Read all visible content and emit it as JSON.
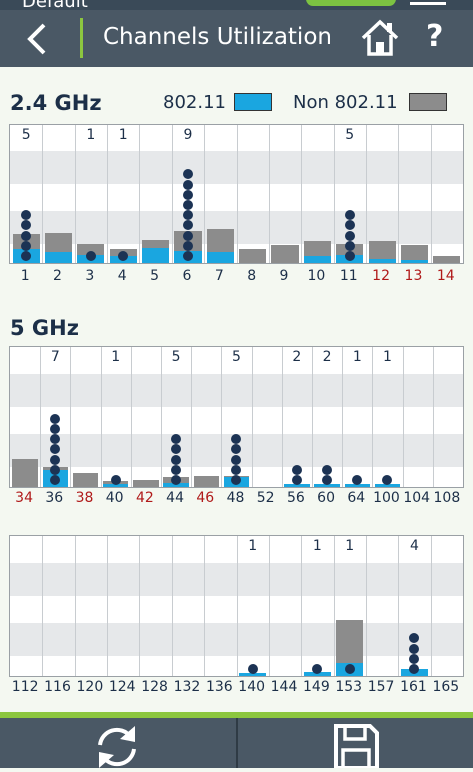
{
  "status": {
    "text": "Default"
  },
  "header": {
    "title": "Channels Utilization",
    "back_icon": "chevron-left-icon",
    "home_icon": "home-icon",
    "help_label": "?"
  },
  "legend": {
    "wifi_label": "802.11",
    "wifi_color": "#1aa6e0",
    "nonwifi_label": "Non 802.11",
    "nonwifi_color": "#8c8c8c"
  },
  "footer": {
    "refresh_icon": "refresh-icon",
    "save_icon": "save-icon"
  },
  "chart_data": [
    {
      "type": "bar",
      "title": "2.4 GHz",
      "x": [
        "1",
        "2",
        "3",
        "4",
        "5",
        "6",
        "7",
        "8",
        "9",
        "10",
        "11",
        "12",
        "13",
        "14"
      ],
      "red_channels": [
        "12",
        "13",
        "14"
      ],
      "series": [
        {
          "name": "802.11",
          "values": [
            0.1,
            0.08,
            0.06,
            0.05,
            0.11,
            0.09,
            0.08,
            0.0,
            0.0,
            0.05,
            0.06,
            0.03,
            0.02,
            0.0
          ]
        },
        {
          "name": "Non 802.11",
          "values": [
            0.21,
            0.22,
            0.14,
            0.1,
            0.17,
            0.23,
            0.25,
            0.1,
            0.13,
            0.16,
            0.14,
            0.16,
            0.13,
            0.05
          ]
        }
      ],
      "ap_counts": [
        5,
        0,
        1,
        1,
        0,
        9,
        0,
        0,
        0,
        0,
        5,
        0,
        0,
        0
      ]
    },
    {
      "type": "bar",
      "title": "5 GHz",
      "x": [
        "34",
        "36",
        "38",
        "40",
        "42",
        "44",
        "46",
        "48",
        "52",
        "56",
        "60",
        "64",
        "100",
        "104",
        "108"
      ],
      "red_channels": [
        "34",
        "38",
        "42",
        "46"
      ],
      "series": [
        {
          "name": "802.11",
          "values": [
            0.0,
            0.12,
            0.0,
            0.02,
            0.0,
            0.03,
            0.0,
            0.07,
            0.0,
            0.02,
            0.02,
            0.02,
            0.02,
            0.0,
            0.0
          ]
        },
        {
          "name": "Non 802.11",
          "values": [
            0.2,
            0.14,
            0.1,
            0.04,
            0.05,
            0.07,
            0.08,
            0.08,
            0.0,
            0.02,
            0.02,
            0.02,
            0.02,
            0.0,
            0.0
          ]
        }
      ],
      "ap_counts": [
        0,
        7,
        0,
        1,
        0,
        5,
        0,
        5,
        0,
        2,
        2,
        1,
        1,
        0,
        0
      ]
    },
    {
      "type": "bar",
      "title": "",
      "x": [
        "112",
        "116",
        "120",
        "124",
        "128",
        "132",
        "136",
        "140",
        "144",
        "149",
        "153",
        "157",
        "161",
        "165"
      ],
      "red_channels": [],
      "series": [
        {
          "name": "802.11",
          "values": [
            0.0,
            0.0,
            0.0,
            0.0,
            0.0,
            0.0,
            0.0,
            0.02,
            0.0,
            0.03,
            0.09,
            0.0,
            0.05,
            0.0
          ]
        },
        {
          "name": "Non 802.11",
          "values": [
            0.0,
            0.0,
            0.0,
            0.0,
            0.0,
            0.0,
            0.0,
            0.0,
            0.0,
            0.03,
            0.4,
            0.0,
            0.05,
            0.0
          ]
        }
      ],
      "ap_counts": [
        0,
        0,
        0,
        0,
        0,
        0,
        0,
        1,
        0,
        1,
        1,
        0,
        4,
        0
      ]
    }
  ]
}
